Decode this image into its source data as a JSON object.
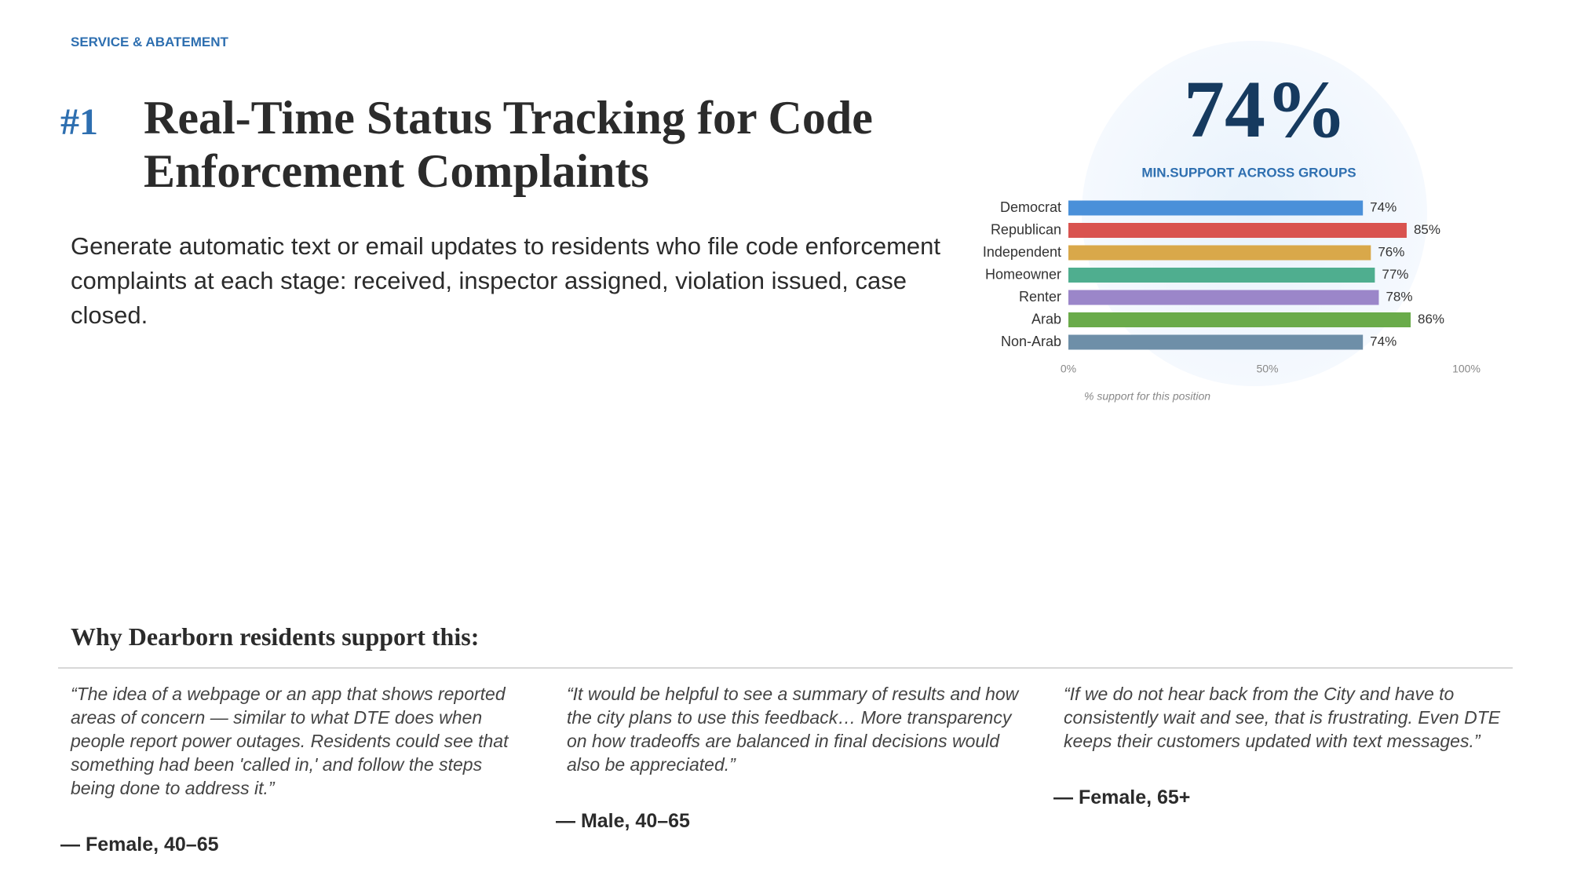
{
  "header": {
    "category": "SERVICE & ABATEMENT",
    "rank": "#1",
    "title": "Real-Time Status Tracking for Code Enforcement Complaints",
    "description": "Generate automatic text or email updates to residents who file code enforcement complaints at each stage: received, inspector assigned, violation issued, case closed."
  },
  "big_stat": {
    "value": "74%",
    "label": "MIN.SUPPORT ACROSS GROUPS"
  },
  "chart_data": {
    "type": "bar",
    "orientation": "horizontal",
    "categories": [
      "Democrat",
      "Republican",
      "Independent",
      "Homeowner",
      "Renter",
      "Arab",
      "Non-Arab"
    ],
    "values": [
      74,
      85,
      76,
      77,
      78,
      86,
      74
    ],
    "value_labels": [
      "74%",
      "85%",
      "76%",
      "77%",
      "78%",
      "86%",
      "74%"
    ],
    "colors": [
      "#4a90d9",
      "#d9534f",
      "#d9a84a",
      "#4fae8f",
      "#9b86c9",
      "#6aab4a",
      "#6e8fa8"
    ],
    "xlim": [
      0,
      100
    ],
    "xticks": [
      {
        "value": 0,
        "label": "0%"
      },
      {
        "value": 50,
        "label": "50%"
      },
      {
        "value": 100,
        "label": "100%"
      }
    ],
    "xlabel": "% support for this position"
  },
  "quotes": {
    "heading": "Why Dearborn residents support this:",
    "items": [
      {
        "text": "“The idea of a webpage or an app that shows reported areas of concern — similar to what DTE does when people report power outages. Residents could see that something had been 'called in,' and follow the steps being done to address it.”",
        "author": "— Female, 40–65"
      },
      {
        "text": "“It would be helpful to see a summary of results and how the city plans to use this feedback… More transparency on how tradeoffs are balanced in final decisions would also be appreciated.”",
        "author": "— Male, 40–65"
      },
      {
        "text": "“If we do not hear back from the City and have to consistently wait and see, that is frustrating. Even DTE keeps their customers updated with text messages.”",
        "author": "— Female, 65+"
      }
    ]
  }
}
